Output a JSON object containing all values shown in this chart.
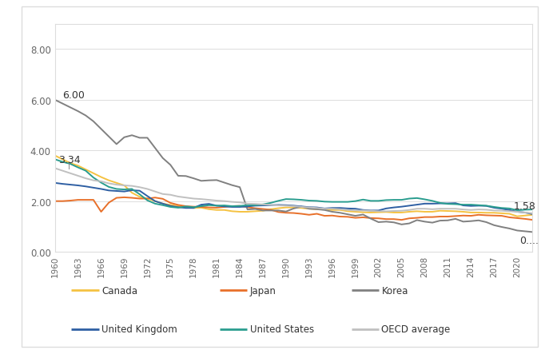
{
  "title": "",
  "years": [
    1960,
    1961,
    1962,
    1963,
    1964,
    1965,
    1966,
    1967,
    1968,
    1969,
    1970,
    1971,
    1972,
    1973,
    1974,
    1975,
    1976,
    1977,
    1978,
    1979,
    1980,
    1981,
    1982,
    1983,
    1984,
    1985,
    1986,
    1987,
    1988,
    1989,
    1990,
    1991,
    1992,
    1993,
    1994,
    1995,
    1996,
    1997,
    1998,
    1999,
    2000,
    2001,
    2002,
    2003,
    2004,
    2005,
    2006,
    2007,
    2008,
    2009,
    2010,
    2011,
    2012,
    2013,
    2014,
    2015,
    2016,
    2017,
    2018,
    2019,
    2020,
    2021,
    2022
  ],
  "Canada": [
    3.8,
    3.65,
    3.5,
    3.4,
    3.25,
    3.1,
    2.95,
    2.82,
    2.72,
    2.62,
    2.33,
    2.17,
    2.1,
    2.0,
    1.9,
    1.85,
    1.8,
    1.76,
    1.73,
    1.74,
    1.68,
    1.65,
    1.65,
    1.6,
    1.58,
    1.58,
    1.6,
    1.62,
    1.68,
    1.72,
    1.75,
    1.75,
    1.73,
    1.7,
    1.68,
    1.67,
    1.65,
    1.65,
    1.6,
    1.58,
    1.56,
    1.55,
    1.56,
    1.57,
    1.55,
    1.55,
    1.58,
    1.6,
    1.58,
    1.58,
    1.62,
    1.61,
    1.6,
    1.58,
    1.55,
    1.55,
    1.54,
    1.54,
    1.52,
    1.5,
    1.4,
    1.43,
    1.46
  ],
  "Japan": [
    2.0,
    2.0,
    2.02,
    2.05,
    2.05,
    2.05,
    1.58,
    1.94,
    2.13,
    2.15,
    2.13,
    2.1,
    2.1,
    2.14,
    2.09,
    1.93,
    1.85,
    1.8,
    1.78,
    1.77,
    1.75,
    1.74,
    1.77,
    1.8,
    1.81,
    1.76,
    1.72,
    1.69,
    1.66,
    1.57,
    1.54,
    1.53,
    1.5,
    1.46,
    1.5,
    1.42,
    1.43,
    1.39,
    1.38,
    1.34,
    1.36,
    1.33,
    1.32,
    1.29,
    1.29,
    1.26,
    1.32,
    1.34,
    1.37,
    1.37,
    1.39,
    1.39,
    1.41,
    1.43,
    1.42,
    1.46,
    1.44,
    1.43,
    1.42,
    1.36,
    1.33,
    1.3,
    1.26
  ],
  "Korea": [
    6.0,
    5.85,
    5.7,
    5.55,
    5.38,
    5.15,
    4.85,
    4.55,
    4.25,
    4.52,
    4.6,
    4.5,
    4.5,
    4.1,
    3.7,
    3.43,
    3.0,
    2.99,
    2.9,
    2.8,
    2.82,
    2.83,
    2.73,
    2.63,
    2.55,
    1.67,
    1.69,
    1.63,
    1.63,
    1.63,
    1.59,
    1.71,
    1.78,
    1.7,
    1.68,
    1.65,
    1.58,
    1.54,
    1.48,
    1.42,
    1.47,
    1.31,
    1.17,
    1.19,
    1.16,
    1.08,
    1.12,
    1.25,
    1.19,
    1.15,
    1.23,
    1.24,
    1.3,
    1.19,
    1.21,
    1.24,
    1.17,
    1.05,
    0.98,
    0.92,
    0.84,
    0.81,
    0.78
  ],
  "United Kingdom": [
    2.72,
    2.68,
    2.65,
    2.62,
    2.58,
    2.53,
    2.48,
    2.42,
    2.4,
    2.38,
    2.43,
    2.41,
    2.2,
    2.0,
    1.9,
    1.81,
    1.76,
    1.73,
    1.73,
    1.86,
    1.89,
    1.82,
    1.79,
    1.77,
    1.77,
    1.79,
    1.82,
    1.83,
    1.84,
    1.85,
    1.84,
    1.82,
    1.79,
    1.76,
    1.75,
    1.71,
    1.73,
    1.73,
    1.71,
    1.7,
    1.65,
    1.63,
    1.63,
    1.71,
    1.75,
    1.78,
    1.82,
    1.86,
    1.9,
    1.9,
    1.91,
    1.91,
    1.92,
    1.83,
    1.81,
    1.82,
    1.81,
    1.74,
    1.7,
    1.65,
    1.58,
    1.55,
    1.49
  ],
  "United States": [
    3.65,
    3.55,
    3.47,
    3.33,
    3.2,
    2.93,
    2.73,
    2.56,
    2.48,
    2.46,
    2.48,
    2.27,
    2.03,
    1.9,
    1.84,
    1.77,
    1.74,
    1.79,
    1.76,
    1.8,
    1.84,
    1.82,
    1.83,
    1.8,
    1.81,
    1.84,
    1.84,
    1.87,
    1.93,
    2.01,
    2.08,
    2.07,
    2.05,
    2.02,
    2.01,
    1.98,
    1.97,
    1.97,
    1.97,
    2.0,
    2.06,
    2.01,
    2.01,
    2.04,
    2.05,
    2.05,
    2.1,
    2.12,
    2.07,
    2.01,
    1.93,
    1.89,
    1.88,
    1.86,
    1.86,
    1.84,
    1.82,
    1.77,
    1.73,
    1.71,
    1.64,
    1.66,
    1.67
  ],
  "OECD average": [
    3.3,
    3.2,
    3.1,
    3.0,
    2.9,
    2.82,
    2.78,
    2.7,
    2.65,
    2.62,
    2.6,
    2.55,
    2.48,
    2.38,
    2.28,
    2.25,
    2.18,
    2.14,
    2.1,
    2.08,
    2.05,
    2.02,
    2.0,
    1.97,
    1.95,
    1.9,
    1.89,
    1.87,
    1.85,
    1.83,
    1.82,
    1.8,
    1.77,
    1.75,
    1.73,
    1.7,
    1.7,
    1.68,
    1.65,
    1.63,
    1.63,
    1.62,
    1.6,
    1.6,
    1.61,
    1.62,
    1.65,
    1.7,
    1.7,
    1.68,
    1.7,
    1.7,
    1.7,
    1.67,
    1.65,
    1.67,
    1.66,
    1.63,
    1.62,
    1.6,
    1.58,
    1.55,
    1.52
  ],
  "colors": {
    "Canada": "#F5C242",
    "Japan": "#E8702A",
    "Korea": "#808080",
    "United Kingdom": "#2E5FA3",
    "United States": "#2A9D8F",
    "OECD average": "#C0C0C0"
  },
  "ylim": [
    0,
    9.0
  ],
  "yticks": [
    0.0,
    2.0,
    4.0,
    6.0,
    8.0
  ],
  "ytick_labels": [
    "0.00",
    "2.00",
    "4.00",
    "6.00",
    "8.00"
  ],
  "xtick_years": [
    1960,
    1963,
    1966,
    1969,
    1972,
    1975,
    1978,
    1981,
    1984,
    1987,
    1990,
    1993,
    1996,
    1999,
    2002,
    2005,
    2008,
    2011,
    2014,
    2017,
    2020
  ],
  "legend_row1": [
    {
      "label": "Canada",
      "color": "#F5C242"
    },
    {
      "label": "Japan",
      "color": "#E8702A"
    },
    {
      "label": "Korea",
      "color": "#808080"
    }
  ],
  "legend_row2": [
    {
      "label": "United Kingdom",
      "color": "#2E5FA3"
    },
    {
      "label": "United States",
      "color": "#2A9D8F"
    },
    {
      "label": "OECD average",
      "color": "#C0C0C0"
    }
  ],
  "background_color": "#FFFFFF",
  "box_color": "#DDDDDD",
  "grid_color": "#DDDDDD",
  "line_width": 1.4
}
